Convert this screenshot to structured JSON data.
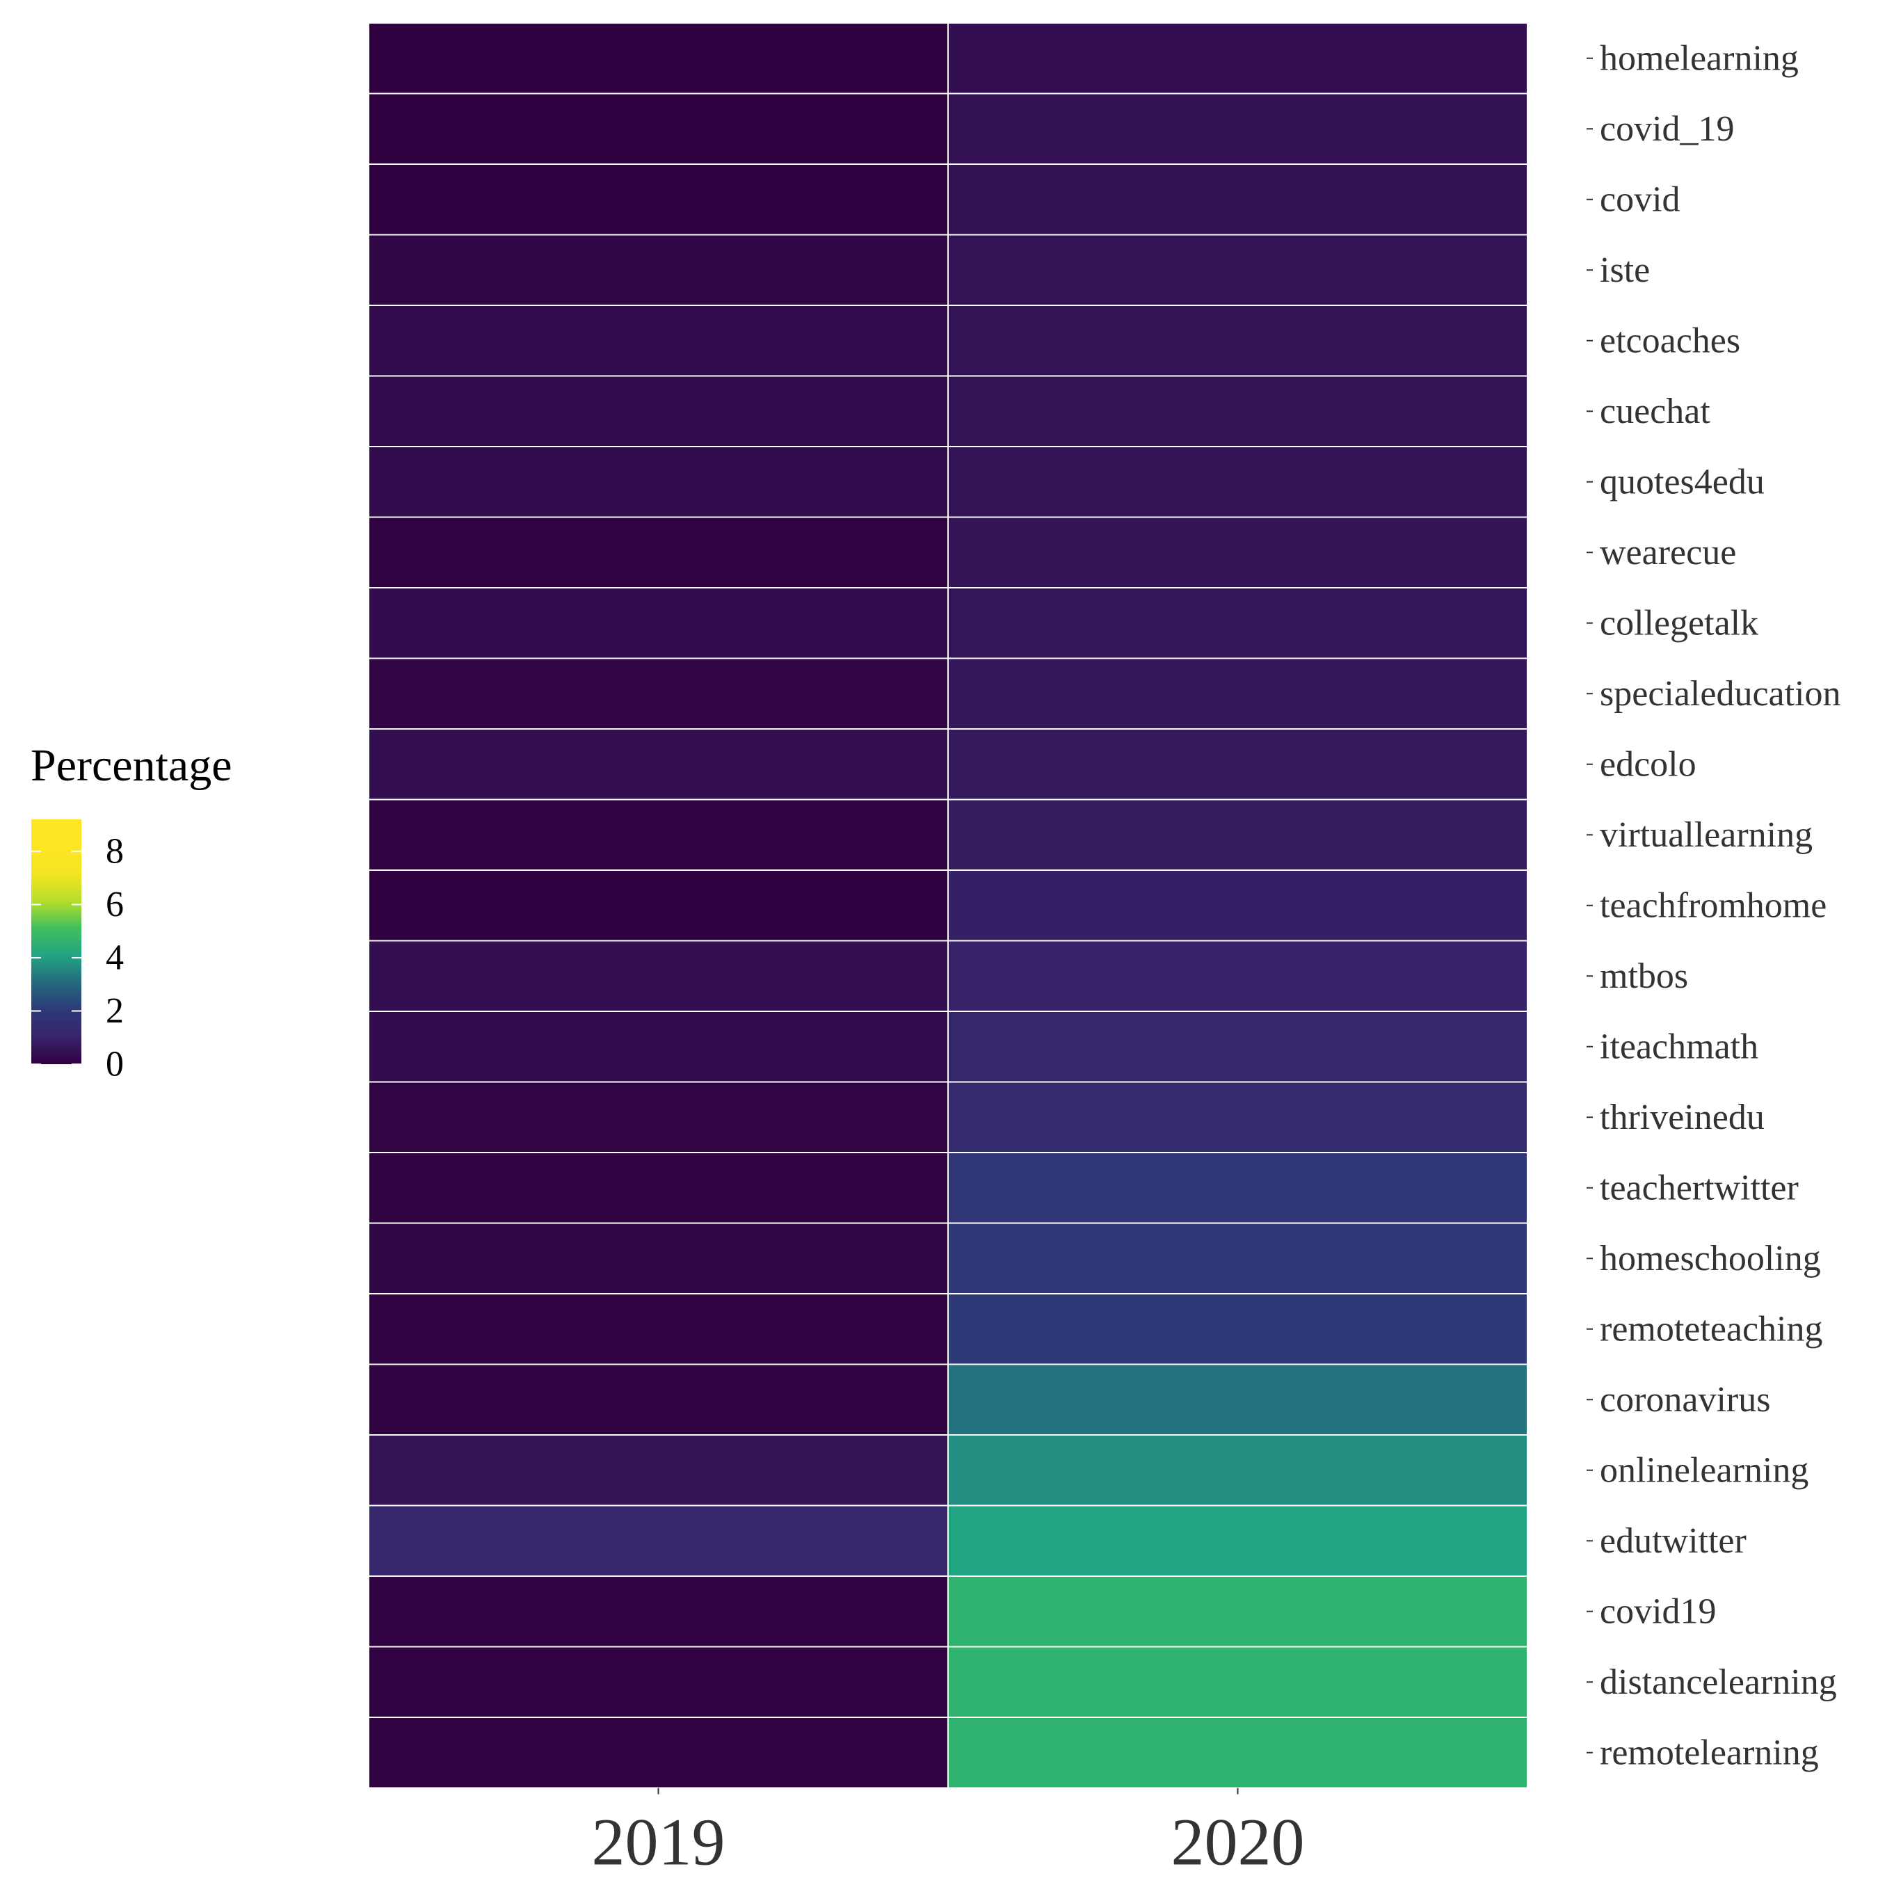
{
  "chart_data": {
    "type": "heatmap",
    "title": "",
    "xlabel": "",
    "ylabel": "",
    "x_categories": [
      "2019",
      "2020"
    ],
    "y_categories": [
      "homelearning",
      "covid_19",
      "covid",
      "iste",
      "etcoaches",
      "cuechat",
      "quotes4edu",
      "wearecue",
      "collegetalk",
      "specialeducation",
      "edcolo",
      "virtuallearning",
      "teachfromhome",
      "mtbos",
      "iteachmath",
      "thriveinedu",
      "teachertwitter",
      "homeschooling",
      "remoteteaching",
      "coronavirus",
      "onlinelearning",
      "edutwitter",
      "covid19",
      "distancelearning",
      "remotelearning"
    ],
    "series": [
      {
        "name": "2019",
        "values": [
          0.0,
          0.0,
          0.0,
          0.2,
          0.3,
          0.3,
          0.3,
          0.05,
          0.35,
          0.15,
          0.4,
          0.05,
          0.0,
          0.4,
          0.35,
          0.1,
          0.05,
          0.2,
          0.05,
          0.05,
          0.5,
          1.1,
          0.05,
          0.05,
          0.05
        ]
      },
      {
        "name": "2020",
        "values": [
          0.4,
          0.45,
          0.45,
          0.5,
          0.5,
          0.5,
          0.55,
          0.55,
          0.6,
          0.65,
          0.7,
          0.8,
          0.9,
          1.0,
          1.1,
          1.4,
          1.8,
          1.95,
          2.05,
          3.2,
          3.7,
          4.1,
          4.6,
          4.6,
          4.6
        ]
      }
    ],
    "legend": {
      "title": "Percentage",
      "ticks": [
        0,
        2,
        4,
        6,
        8
      ],
      "range": [
        0,
        9.2
      ],
      "colors": [
        "#300040",
        "#37246a",
        "#2e3a78",
        "#24697e",
        "#22a583",
        "#3fc05d",
        "#b6de2b",
        "#f5e421",
        "#fde725",
        "#fde725"
      ],
      "position": "left"
    },
    "grid": false
  }
}
